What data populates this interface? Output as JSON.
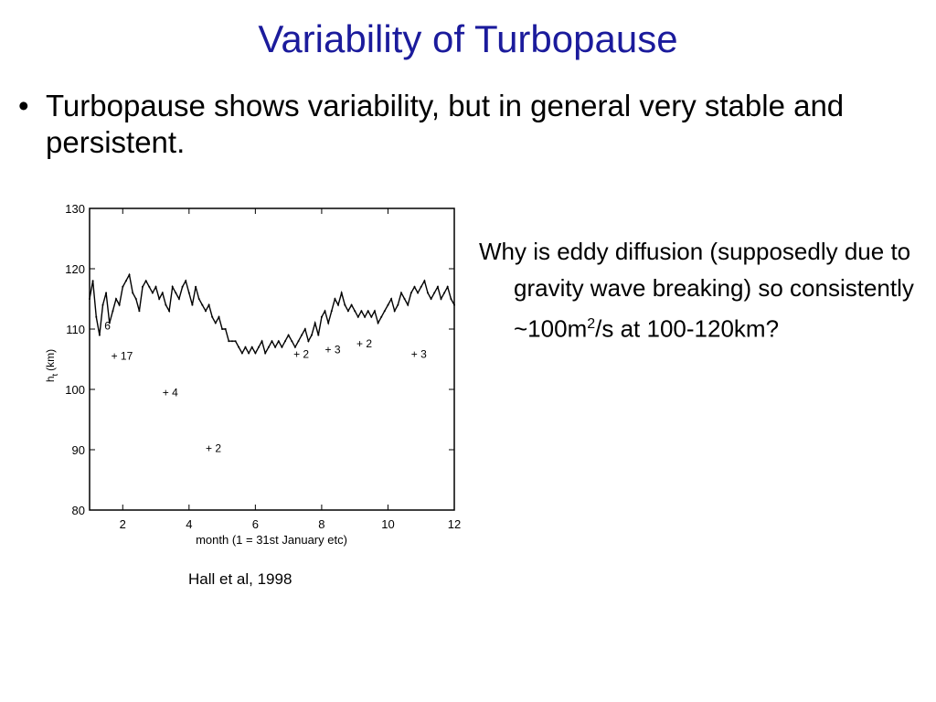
{
  "slide": {
    "title": "Variability of Turbopause",
    "bullet_glyph": "•",
    "bullet_text": "Turbopause shows variability, but in general very stable and persistent.",
    "question_before_sup": "Why is eddy diffusion (supposedly due to gravity wave breaking) so consistently ~100m",
    "question_sup": "2",
    "question_after_sup": "/s at 100-120km?",
    "citation": "Hall et al, 1998"
  },
  "chart_data": {
    "type": "line",
    "xlabel": "month (1 = 31st January etc)",
    "ylabel": "h",
    "ylabel_sub": "t",
    "ylabel_unit": "(km)",
    "xlim": [
      1,
      12
    ],
    "ylim": [
      80,
      130
    ],
    "x_ticks": [
      2,
      4,
      6,
      8,
      10,
      12
    ],
    "y_ticks": [
      80,
      90,
      100,
      110,
      120,
      130
    ],
    "grid": false,
    "series": [
      {
        "values": [
          {
            "x": 1.0,
            "y": 115
          },
          {
            "x": 1.1,
            "y": 118
          },
          {
            "x": 1.2,
            "y": 112
          },
          {
            "x": 1.3,
            "y": 109
          },
          {
            "x": 1.4,
            "y": 114
          },
          {
            "x": 1.5,
            "y": 116
          },
          {
            "x": 1.6,
            "y": 111
          },
          {
            "x": 1.7,
            "y": 113
          },
          {
            "x": 1.8,
            "y": 115
          },
          {
            "x": 1.9,
            "y": 114
          },
          {
            "x": 2.0,
            "y": 117
          },
          {
            "x": 2.1,
            "y": 118
          },
          {
            "x": 2.2,
            "y": 119
          },
          {
            "x": 2.3,
            "y": 116
          },
          {
            "x": 2.4,
            "y": 115
          },
          {
            "x": 2.5,
            "y": 113
          },
          {
            "x": 2.6,
            "y": 117
          },
          {
            "x": 2.7,
            "y": 118
          },
          {
            "x": 2.8,
            "y": 117
          },
          {
            "x": 2.9,
            "y": 116
          },
          {
            "x": 3.0,
            "y": 117
          },
          {
            "x": 3.1,
            "y": 115
          },
          {
            "x": 3.2,
            "y": 116
          },
          {
            "x": 3.3,
            "y": 114
          },
          {
            "x": 3.4,
            "y": 113
          },
          {
            "x": 3.5,
            "y": 117
          },
          {
            "x": 3.6,
            "y": 116
          },
          {
            "x": 3.7,
            "y": 115
          },
          {
            "x": 3.8,
            "y": 117
          },
          {
            "x": 3.9,
            "y": 118
          },
          {
            "x": 4.0,
            "y": 116
          },
          {
            "x": 4.1,
            "y": 114
          },
          {
            "x": 4.2,
            "y": 117
          },
          {
            "x": 4.3,
            "y": 115
          },
          {
            "x": 4.4,
            "y": 114
          },
          {
            "x": 4.5,
            "y": 113
          },
          {
            "x": 4.6,
            "y": 114
          },
          {
            "x": 4.7,
            "y": 112
          },
          {
            "x": 4.8,
            "y": 111
          },
          {
            "x": 4.9,
            "y": 112
          },
          {
            "x": 5.0,
            "y": 110
          },
          {
            "x": 5.1,
            "y": 110
          },
          {
            "x": 5.2,
            "y": 108
          },
          {
            "x": 5.3,
            "y": 108
          },
          {
            "x": 5.4,
            "y": 108
          },
          {
            "x": 5.5,
            "y": 107
          },
          {
            "x": 5.6,
            "y": 106
          },
          {
            "x": 5.7,
            "y": 107
          },
          {
            "x": 5.8,
            "y": 106
          },
          {
            "x": 5.9,
            "y": 107
          },
          {
            "x": 6.0,
            "y": 106
          },
          {
            "x": 6.1,
            "y": 107
          },
          {
            "x": 6.2,
            "y": 108
          },
          {
            "x": 6.3,
            "y": 106
          },
          {
            "x": 6.4,
            "y": 107
          },
          {
            "x": 6.5,
            "y": 108
          },
          {
            "x": 6.6,
            "y": 107
          },
          {
            "x": 6.7,
            "y": 108
          },
          {
            "x": 6.8,
            "y": 107
          },
          {
            "x": 6.9,
            "y": 108
          },
          {
            "x": 7.0,
            "y": 109
          },
          {
            "x": 7.1,
            "y": 108
          },
          {
            "x": 7.2,
            "y": 107
          },
          {
            "x": 7.3,
            "y": 108
          },
          {
            "x": 7.4,
            "y": 109
          },
          {
            "x": 7.5,
            "y": 110
          },
          {
            "x": 7.6,
            "y": 108
          },
          {
            "x": 7.7,
            "y": 109
          },
          {
            "x": 7.8,
            "y": 111
          },
          {
            "x": 7.9,
            "y": 109
          },
          {
            "x": 8.0,
            "y": 112
          },
          {
            "x": 8.1,
            "y": 113
          },
          {
            "x": 8.2,
            "y": 111
          },
          {
            "x": 8.3,
            "y": 113
          },
          {
            "x": 8.4,
            "y": 115
          },
          {
            "x": 8.5,
            "y": 114
          },
          {
            "x": 8.6,
            "y": 116
          },
          {
            "x": 8.7,
            "y": 114
          },
          {
            "x": 8.8,
            "y": 113
          },
          {
            "x": 8.9,
            "y": 114
          },
          {
            "x": 9.0,
            "y": 113
          },
          {
            "x": 9.1,
            "y": 112
          },
          {
            "x": 9.2,
            "y": 113
          },
          {
            "x": 9.3,
            "y": 112
          },
          {
            "x": 9.4,
            "y": 113
          },
          {
            "x": 9.5,
            "y": 112
          },
          {
            "x": 9.6,
            "y": 113
          },
          {
            "x": 9.7,
            "y": 111
          },
          {
            "x": 9.8,
            "y": 112
          },
          {
            "x": 9.9,
            "y": 113
          },
          {
            "x": 10.0,
            "y": 114
          },
          {
            "x": 10.1,
            "y": 115
          },
          {
            "x": 10.2,
            "y": 113
          },
          {
            "x": 10.3,
            "y": 114
          },
          {
            "x": 10.4,
            "y": 116
          },
          {
            "x": 10.5,
            "y": 115
          },
          {
            "x": 10.6,
            "y": 114
          },
          {
            "x": 10.7,
            "y": 116
          },
          {
            "x": 10.8,
            "y": 117
          },
          {
            "x": 10.9,
            "y": 116
          },
          {
            "x": 11.0,
            "y": 117
          },
          {
            "x": 11.1,
            "y": 118
          },
          {
            "x": 11.2,
            "y": 116
          },
          {
            "x": 11.3,
            "y": 115
          },
          {
            "x": 11.4,
            "y": 116
          },
          {
            "x": 11.5,
            "y": 117
          },
          {
            "x": 11.6,
            "y": 115
          },
          {
            "x": 11.7,
            "y": 116
          },
          {
            "x": 11.8,
            "y": 117
          },
          {
            "x": 11.9,
            "y": 115
          },
          {
            "x": 12.0,
            "y": 114
          }
        ]
      }
    ],
    "annotations": [
      {
        "x": 1.45,
        "y": 110.5,
        "text": "6"
      },
      {
        "x": 1.65,
        "y": 105.5,
        "text": "+ 17"
      },
      {
        "x": 3.2,
        "y": 99.5,
        "text": "+ 4"
      },
      {
        "x": 4.5,
        "y": 90.2,
        "text": "+ 2"
      },
      {
        "x": 7.15,
        "y": 105.8,
        "text": "+ 2"
      },
      {
        "x": 8.1,
        "y": 106.6,
        "text": "+ 3"
      },
      {
        "x": 9.05,
        "y": 107.6,
        "text": "+ 2"
      },
      {
        "x": 10.7,
        "y": 105.8,
        "text": "+ 3"
      }
    ]
  }
}
